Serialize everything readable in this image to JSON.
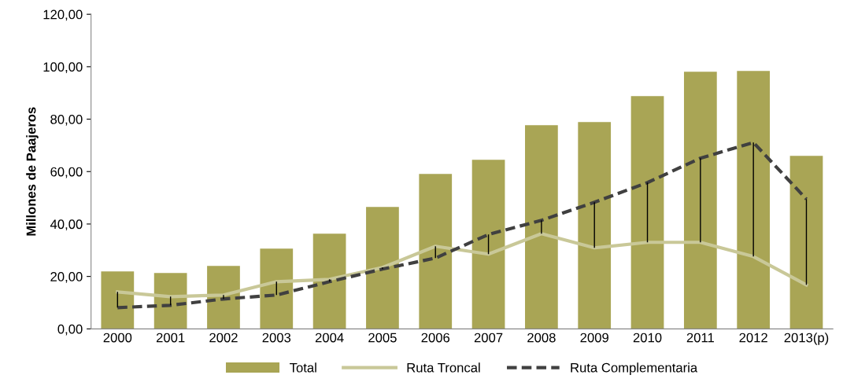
{
  "chart_data": {
    "type": "bar",
    "ylabel": "Millones de Paajeros",
    "categories": [
      "2000",
      "2001",
      "2002",
      "2003",
      "2004",
      "2005",
      "2006",
      "2007",
      "2008",
      "2009",
      "2010",
      "2011",
      "2012",
      "2013(p)"
    ],
    "series": [
      {
        "name": "Total",
        "color": "#a9a555",
        "values": [
          21.9,
          21.3,
          24.0,
          30.6,
          36.3,
          46.5,
          59.1,
          64.5,
          77.7,
          78.9,
          88.8,
          98.1,
          98.4,
          66.0
        ]
      },
      {
        "name": "Ruta Troncal",
        "type": "line",
        "color": "#c9c898",
        "line_style": "solid",
        "values": [
          14.1,
          12.3,
          12.9,
          18.0,
          18.9,
          23.4,
          31.5,
          28.5,
          36.3,
          30.9,
          33.0,
          33.0,
          27.6,
          16.8
        ]
      },
      {
        "name": "Ruta Complementaria",
        "type": "line",
        "color": "#404040",
        "line_style": "dashed",
        "values": [
          8.1,
          9.0,
          11.4,
          12.9,
          18.0,
          22.8,
          27.0,
          36.0,
          41.4,
          48.3,
          55.8,
          65.1,
          71.1,
          49.5
        ],
        "errors": [
          [
            8.1,
            14.1
          ],
          [
            9.0,
            12.3
          ],
          [
            11.4,
            12.9
          ],
          [
            12.9,
            18.0
          ],
          [
            18.0,
            18.9
          ],
          [
            22.8,
            23.4
          ],
          [
            27.0,
            31.5
          ],
          [
            28.5,
            36.0
          ],
          [
            36.3,
            41.4
          ],
          [
            30.9,
            48.3
          ],
          [
            33.0,
            55.8
          ],
          [
            33.0,
            65.1
          ],
          [
            27.6,
            71.1
          ],
          [
            16.8,
            49.5
          ]
        ]
      }
    ],
    "ylim": [
      0,
      120
    ],
    "yticks": [
      {
        "value": 0,
        "label": "0,00"
      },
      {
        "value": 20,
        "label": "20,00"
      },
      {
        "value": 40,
        "label": "40,00"
      },
      {
        "value": 60,
        "label": "60,00"
      },
      {
        "value": 80,
        "label": "80,00"
      },
      {
        "value": 100,
        "label": "100,00"
      },
      {
        "value": 120,
        "label": "120,00"
      }
    ],
    "grid": false,
    "legend": "bottom",
    "marker": "none"
  }
}
